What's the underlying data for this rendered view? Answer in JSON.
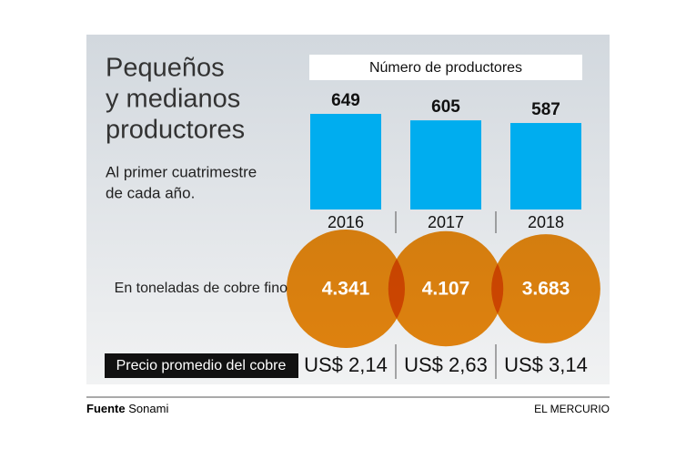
{
  "chart_data": {
    "type": "bar",
    "title": [
      "Pequeños",
      "y medianos",
      "productores"
    ],
    "subtitle": [
      "Al primer cuatrimestre",
      "de cada año."
    ],
    "bar_title": "Número de productores",
    "categories": [
      "2016",
      "2017",
      "2018"
    ],
    "values": [
      649,
      605,
      587
    ],
    "color": "#00adef",
    "tonnage": {
      "label": "En toneladas de cobre fino",
      "values": [
        4341,
        4107,
        3683
      ],
      "value_labels": [
        "4.341",
        "4.107",
        "3.683"
      ],
      "color": "#ee8a10"
    },
    "price": {
      "label": "Precio promedio del cobre",
      "values": [
        2.14,
        2.63,
        3.14
      ],
      "value_labels": [
        "US$ 2,14",
        "US$ 2,63",
        "US$ 3,14"
      ]
    }
  },
  "footer": {
    "source_label": "Fuente",
    "source": "Sonami",
    "brand": "EL MERCURIO"
  }
}
